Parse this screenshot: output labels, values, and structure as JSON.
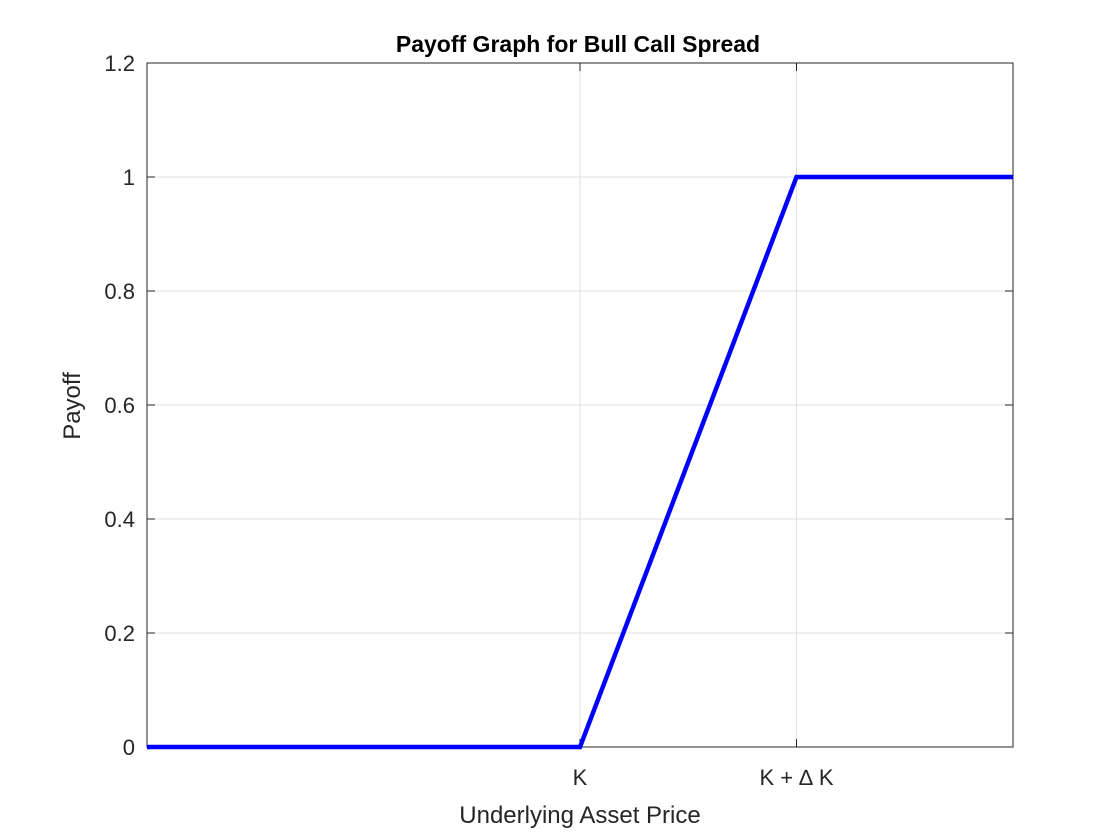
{
  "chart_data": {
    "type": "line",
    "title": "Payoff Graph for Bull Call Spread",
    "xlabel": "Underlying Asset Price",
    "ylabel": "Payoff",
    "x_ticks": [
      {
        "position": 2,
        "label": "K"
      },
      {
        "position": 3,
        "label": "K + ∆ K"
      }
    ],
    "y_ticks": [
      "0",
      "0.2",
      "0.4",
      "0.6",
      "0.8",
      "1",
      "1.2"
    ],
    "xlim": [
      0,
      4
    ],
    "ylim": [
      0,
      1.2
    ],
    "grid": true,
    "colors": {
      "line": "#0000ff",
      "grid": "#dfdfdf",
      "axes": "#262626"
    },
    "series": [
      {
        "x": [
          0,
          2,
          3,
          4
        ],
        "y": [
          0,
          0,
          1,
          1
        ]
      }
    ]
  }
}
